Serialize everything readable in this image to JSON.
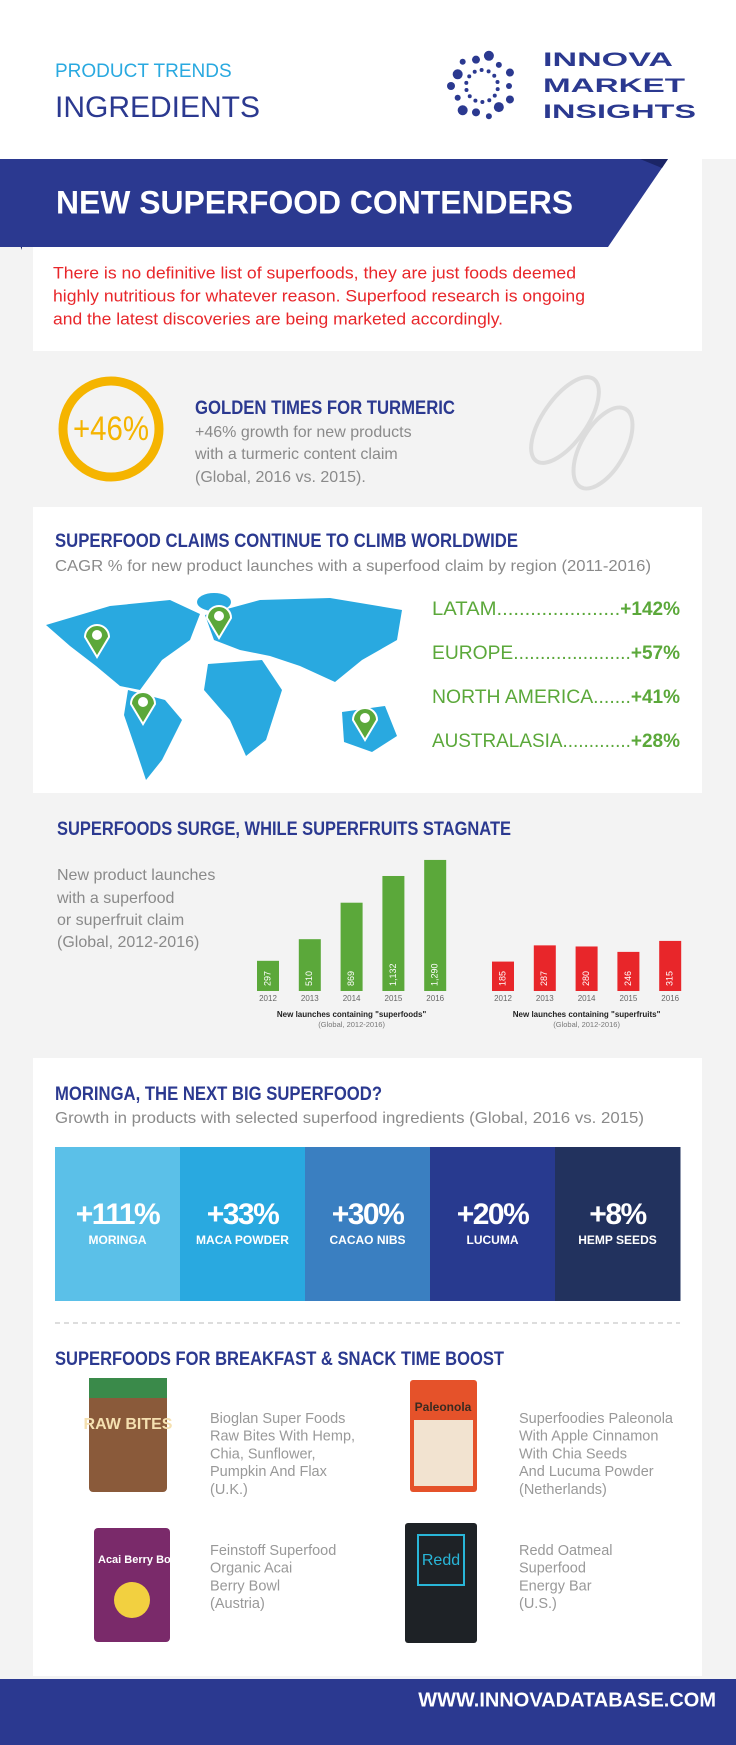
{
  "header": {
    "kicker": "PRODUCT TRENDS",
    "title": "INGREDIENTS",
    "logo": [
      "INNOVA",
      "MARKET",
      "INSIGHTS"
    ]
  },
  "banner": {
    "title": "NEW SUPERFOOD CONTENDERS",
    "intro": [
      "There is no definitive list of superfoods, they are just foods deemed",
      "highly nutritious for whatever reason. Superfood research is ongoing",
      "and the latest discoveries are being marketed accordingly."
    ]
  },
  "turmeric": {
    "badge": "+46%",
    "title": "GOLDEN TIMES FOR TURMERIC",
    "text": [
      "+46% growth for new products",
      "with a turmeric content claim",
      "(Global, 2016 vs. 2015)."
    ]
  },
  "regions": {
    "title": "SUPERFOOD CLAIMS CONTINUE TO CLIMB WORLDWIDE",
    "subtitle": "CAGR % for new product launches with a superfood claim by region (2011-2016)",
    "items": [
      {
        "label": "LATAM......................",
        "value": "+142%"
      },
      {
        "label": "EUROPE......................",
        "value": "+57%"
      },
      {
        "label": "NORTH AMERICA.......",
        "value": "+41%"
      },
      {
        "label": "AUSTRALASIA.............",
        "value": "+28%"
      }
    ]
  },
  "surge": {
    "title": "SUPERFOODS SURGE, WHILE SUPERFRUITS STAGNATE",
    "text": [
      "New product launches",
      "with a superfood",
      "or superfruit claim",
      "(Global, 2012-2016)"
    ],
    "charts": [
      {
        "type": "bar",
        "categories": [
          "2012",
          "2013",
          "2014",
          "2015",
          "2016"
        ],
        "values": [
          297,
          510,
          869,
          1132,
          1290
        ],
        "value_labels": [
          "297",
          "510",
          "869",
          "1,132",
          "1,290"
        ],
        "color": "#5ba83a",
        "caption": "New launches containing \"superfoods\"",
        "note": "(Global, 2012-2016)"
      },
      {
        "type": "bar",
        "categories": [
          "2012",
          "2013",
          "2014",
          "2015",
          "2016"
        ],
        "values": [
          185,
          287,
          280,
          246,
          315
        ],
        "value_labels": [
          "185",
          "287",
          "280",
          "246",
          "315"
        ],
        "color": "#e8262a",
        "caption": "New launches containing \"superfruits\"",
        "note": "(Global, 2012-2016)"
      }
    ]
  },
  "moringa": {
    "title": "MORINGA, THE NEXT BIG SUPERFOOD?",
    "subtitle": "Growth in products with selected superfood ingredients (Global, 2016 vs. 2015)",
    "tiles": [
      {
        "value": "+111%",
        "name": "MORINGA",
        "color": "#5bc0e8"
      },
      {
        "value": "+33%",
        "name": "MACA POWDER",
        "color": "#29a9e0"
      },
      {
        "value": "+30%",
        "name": "CACAO NIBS",
        "color": "#3a7fc1"
      },
      {
        "value": "+20%",
        "name": "LUCUMA",
        "color": "#283a8f"
      },
      {
        "value": "+8%",
        "name": "HEMP SEEDS",
        "color": "#22325e"
      }
    ]
  },
  "breakfast": {
    "title": "SUPERFOODS FOR BREAKFAST & SNACK TIME BOOST",
    "products": [
      {
        "pack": "RAW BITES",
        "lines": [
          "Bioglan Super Foods",
          "Raw Bites With Hemp,",
          "Chia, Sunflower,",
          "Pumpkin And Flax",
          "(U.K.)"
        ]
      },
      {
        "pack": "Paleonola",
        "lines": [
          "Superfoodies Paleonola",
          "With Apple Cinnamon",
          "With Chia Seeds",
          "And Lucuma Powder",
          "(Netherlands)"
        ]
      },
      {
        "pack": "Acai Berry Bowl",
        "lines": [
          "Feinstoff Superfood",
          "Organic Acai",
          "Berry Bowl",
          "(Austria)"
        ]
      },
      {
        "pack": "Redd",
        "lines": [
          "Redd Oatmeal",
          "Superfood",
          "Energy Bar",
          "(U.S.)"
        ]
      }
    ]
  },
  "footer": {
    "url": "WWW.INNOVADATABASE.COM"
  }
}
